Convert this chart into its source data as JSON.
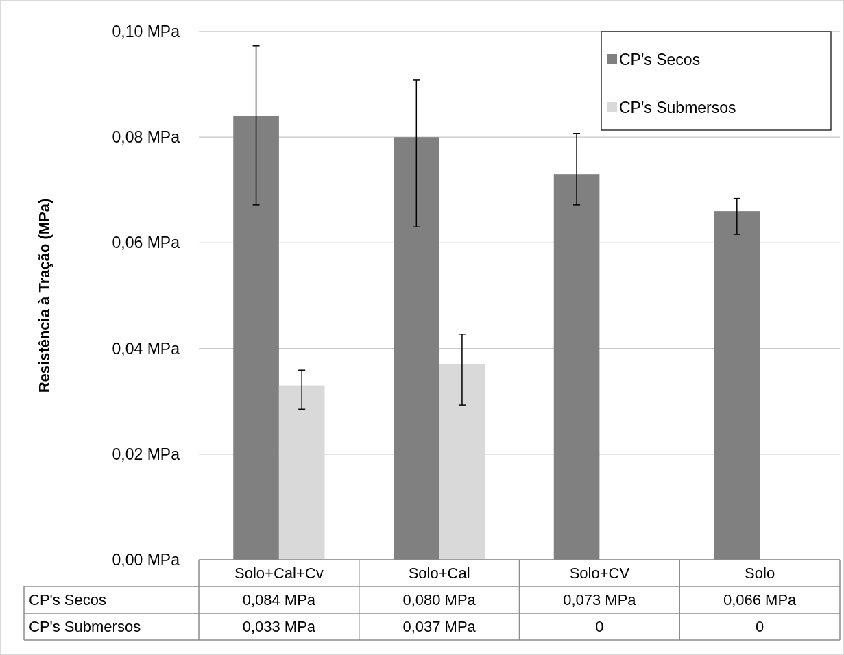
{
  "chart_data": {
    "type": "bar",
    "ylabel": "Resistência à Tração (MPa)",
    "categories": [
      "Solo+Cal+Cv",
      "Solo+Cal",
      "Solo+CV",
      "Solo"
    ],
    "series": [
      {
        "name": "CP's Secos",
        "color": "#808080",
        "values": [
          0.084,
          0.08,
          0.073,
          0.066
        ],
        "errors": [
          [
            0.0672,
            0.0973
          ],
          [
            0.063,
            0.0908
          ],
          [
            0.0672,
            0.0807
          ],
          [
            0.0616,
            0.0684
          ]
        ],
        "value_labels": [
          "0,084 MPa",
          "0,080 MPa",
          "0,073 MPa",
          "0,066 MPa"
        ]
      },
      {
        "name": "CP's Submersos",
        "color": "#d9d9d9",
        "values": [
          0.033,
          0.037,
          0,
          0
        ],
        "errors": [
          [
            0.0285,
            0.0359
          ],
          [
            0.0293,
            0.0427
          ],
          null,
          null
        ],
        "value_labels": [
          "0,033 MPa",
          "0,037 MPa",
          "0",
          "0"
        ]
      }
    ],
    "ylim": [
      0,
      0.1
    ],
    "yticks": [
      {
        "value": 0,
        "label": "0,00 MPa"
      },
      {
        "value": 0.02,
        "label": "0,02 MPa"
      },
      {
        "value": 0.04,
        "label": "0,04 MPa"
      },
      {
        "value": 0.06,
        "label": "0,06 MPa"
      },
      {
        "value": 0.08,
        "label": "0,08 MPa"
      },
      {
        "value": 0.1,
        "label": "0,10 MPa"
      }
    ],
    "grid": "y",
    "legend": "top right"
  }
}
